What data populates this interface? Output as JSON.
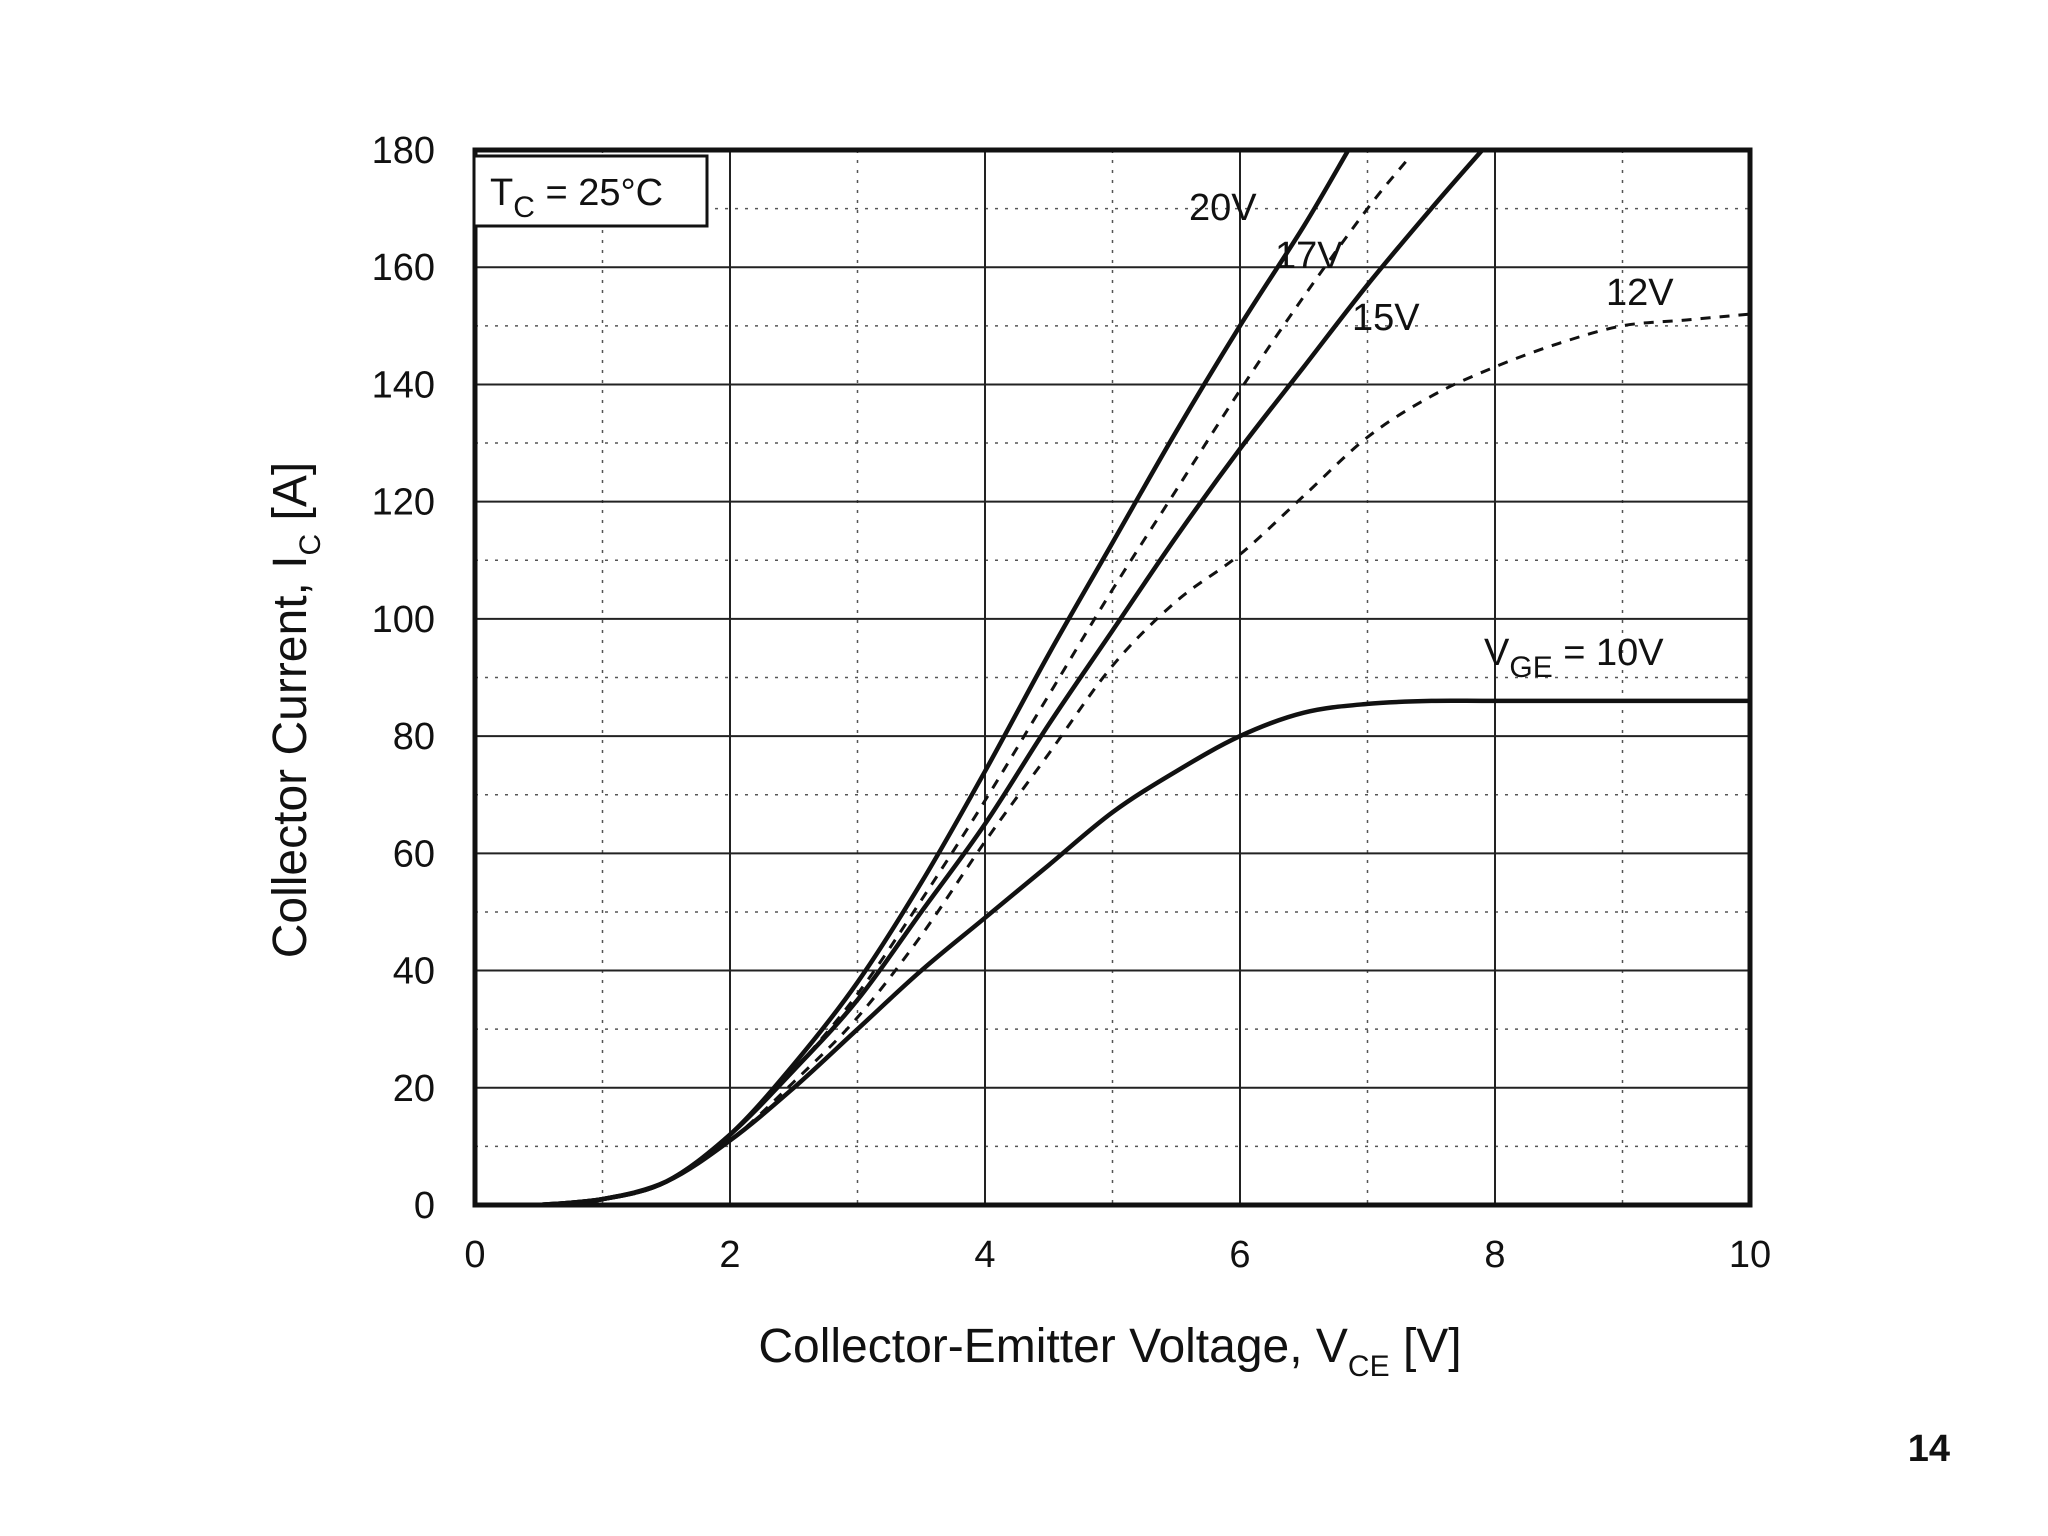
{
  "page_number": "14",
  "chart_data": {
    "type": "line",
    "xlabel": {
      "main": "Collector-Emitter Voltage, V",
      "sub": "CE",
      "unit": " [V]"
    },
    "ylabel": {
      "main": "Collector Current, I",
      "sub": "C",
      "unit": " [A]"
    },
    "xlim": [
      0,
      10
    ],
    "ylim": [
      0,
      180
    ],
    "x_ticks": [
      "0",
      "2",
      "4",
      "6",
      "8",
      "10"
    ],
    "y_ticks": [
      "0",
      "20",
      "40",
      "60",
      "80",
      "100",
      "120",
      "140",
      "160",
      "180"
    ],
    "grid": true,
    "condition": {
      "main": "T",
      "sub": "C",
      "rest": " = 25°C"
    },
    "series_prefix": {
      "main": "V",
      "sub": "GE",
      "rest": " = "
    },
    "series": [
      {
        "name": "20V",
        "style": "solid",
        "x": [
          0.5,
          1.0,
          1.5,
          2.0,
          2.5,
          3.0,
          3.5,
          4.0,
          4.5,
          5.0,
          5.5,
          6.0,
          6.5,
          6.85
        ],
        "y": [
          0,
          1,
          4,
          12,
          24,
          38,
          55,
          74,
          94,
          113,
          132,
          150,
          167,
          180
        ]
      },
      {
        "name": "17V",
        "style": "dashed",
        "x": [
          0.5,
          1.0,
          1.5,
          2.0,
          2.5,
          3.0,
          3.5,
          4.0,
          4.5,
          5.0,
          5.5,
          6.0,
          6.5,
          7.0,
          7.3
        ],
        "y": [
          0,
          1,
          4,
          12,
          23,
          36,
          52,
          69,
          87,
          105,
          122,
          139,
          155,
          170,
          178
        ]
      },
      {
        "name": "15V",
        "style": "solid",
        "x": [
          0.5,
          1.0,
          1.5,
          2.0,
          2.5,
          3.0,
          3.5,
          4.0,
          4.5,
          5.0,
          5.5,
          6.0,
          6.5,
          7.0,
          7.5,
          7.9
        ],
        "y": [
          0,
          1,
          4,
          12,
          23,
          35,
          50,
          65,
          82,
          98,
          114,
          129,
          143,
          157,
          170,
          180
        ]
      },
      {
        "name": "12V",
        "style": "dashed",
        "x": [
          0.5,
          1.0,
          1.5,
          2.0,
          2.5,
          3.0,
          3.5,
          4.0,
          4.5,
          5.0,
          5.5,
          6.0,
          6.5,
          7.0,
          7.5,
          8.0,
          8.5,
          9.0,
          9.5,
          10.0
        ],
        "y": [
          0,
          1,
          4,
          11,
          21,
          32,
          46,
          62,
          77,
          92,
          103,
          111,
          121,
          131,
          138,
          143,
          147,
          150,
          151,
          152
        ]
      },
      {
        "name": "10V",
        "style": "solid",
        "x": [
          0.5,
          1.0,
          1.5,
          2.0,
          2.5,
          3.0,
          3.5,
          4.0,
          4.5,
          5.0,
          5.5,
          6.0,
          6.5,
          7.0,
          7.5,
          8.0,
          9.0,
          10.0
        ],
        "y": [
          0,
          1,
          4,
          11,
          20,
          30,
          40,
          49,
          58,
          67,
          74,
          80,
          84,
          85.5,
          86,
          86,
          86,
          86
        ]
      }
    ]
  }
}
